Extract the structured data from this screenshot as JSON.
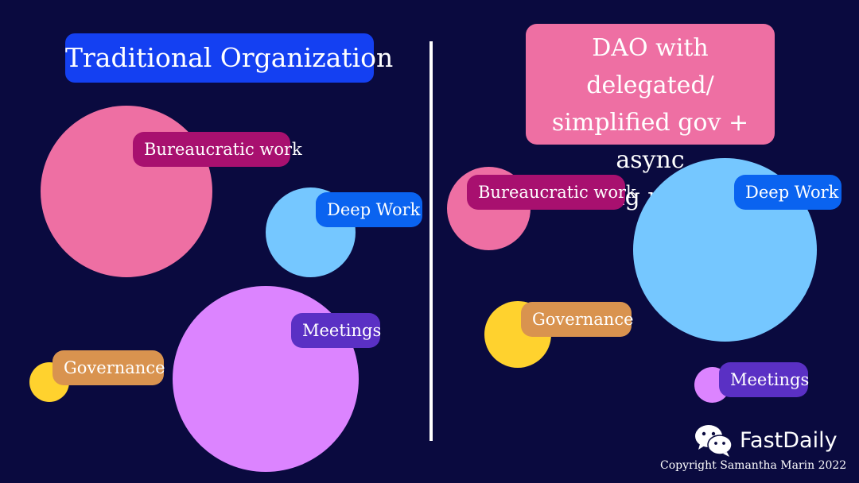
{
  "colors": {
    "background": "#0a0a3f",
    "title_left": "#1440f2",
    "title_right": "#ee6fa3",
    "bureaucratic_circle": "#ee6fa3",
    "bureaucratic_label": "#a8106f",
    "deep_work_circle": "#75c7ff",
    "deep_work_label": "#0a63f0",
    "meetings_circle": "#dc84ff",
    "meetings_label": "#5a30c4",
    "governance_circle": "#ffd22e",
    "governance_label": "#d9934f"
  },
  "left": {
    "title": "Traditional Organization",
    "labels": {
      "bureaucratic": "Bureaucratic work",
      "deep_work": "Deep Work",
      "meetings": "Meetings",
      "governance": "Governance"
    }
  },
  "right": {
    "title_lines": [
      "DAO with delegated/",
      "simplified gov + async",
      "meeting practices"
    ],
    "labels": {
      "bureaucratic": "Bureaucratic work",
      "deep_work": "Deep Work",
      "governance": "Governance",
      "meetings": "Meetings"
    }
  },
  "brand": {
    "name": "FastDaily",
    "icon": "wechat-logo-icon",
    "copyright": "Copyright Samantha Marin 2022"
  }
}
